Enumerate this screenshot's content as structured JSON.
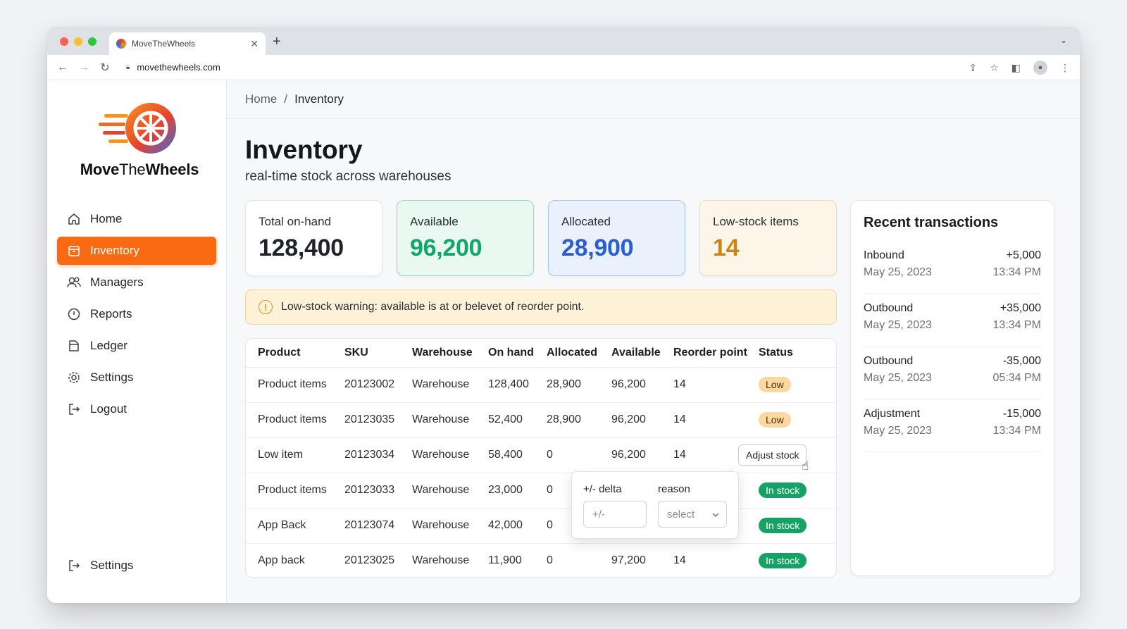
{
  "browser": {
    "tab_title": "MoveTheWheels",
    "url": "movethewheels.com",
    "colors": {
      "red": "#ff5f57",
      "yellow": "#febc2e",
      "green": "#28c840"
    }
  },
  "brand": {
    "name_bold_1": "Move",
    "name_thin": "The",
    "name_bold_2": "Wheels"
  },
  "nav": {
    "items": [
      {
        "label": "Home",
        "icon": "home-icon"
      },
      {
        "label": "Inventory",
        "icon": "box-icon",
        "active": true
      },
      {
        "label": "Managers",
        "icon": "users-icon"
      },
      {
        "label": "Reports",
        "icon": "clock-icon"
      },
      {
        "label": "Ledger",
        "icon": "folder-icon"
      },
      {
        "label": "Settings",
        "icon": "gear-icon"
      },
      {
        "label": "Logout",
        "icon": "logout-icon"
      }
    ],
    "bottom_label": "Settings"
  },
  "breadcrumb": {
    "home": "Home",
    "sep": "/",
    "current": "Inventory"
  },
  "page": {
    "title": "Inventory",
    "subtitle": "real-time stock across warehouses"
  },
  "kpis": [
    {
      "label": "Total on-hand",
      "value": "128,400"
    },
    {
      "label": "Available",
      "value": "96,200"
    },
    {
      "label": "Allocated",
      "value": "28,900"
    },
    {
      "label": "Low-stock items",
      "value": "14"
    }
  ],
  "warning": {
    "text": "Low-stock warning: available is at or belevet of reorder point."
  },
  "table": {
    "headers": [
      "Product",
      "SKU",
      "Warehouse",
      "On hand",
      "Allocated",
      "Available",
      "Reorder point",
      "Status"
    ],
    "rows": [
      {
        "product": "Product items",
        "sku": "20123002",
        "warehouse": "Warehouse",
        "on_hand": "128,400",
        "allocated": "28,900",
        "available": "96,200",
        "reorder": "14",
        "status": "Low"
      },
      {
        "product": "Product items",
        "sku": "20123035",
        "warehouse": "Warehouse",
        "on_hand": "52,400",
        "allocated": "28,900",
        "available": "96,200",
        "reorder": "14",
        "status": "Low"
      },
      {
        "product": "Low item",
        "sku": "20123034",
        "warehouse": "Warehouse",
        "on_hand": "58,400",
        "allocated": "0",
        "available": "96,200",
        "reorder": "14",
        "status": "Adjust stock"
      },
      {
        "product": "Product items",
        "sku": "20123033",
        "warehouse": "Warehouse",
        "on_hand": "23,000",
        "allocated": "0",
        "available": "",
        "reorder": "",
        "status": "In stock"
      },
      {
        "product": "App Back",
        "sku": "20123074",
        "warehouse": "Warehouse",
        "on_hand": "42,000",
        "allocated": "0",
        "available": "",
        "reorder": "",
        "status": "In stock"
      },
      {
        "product": "App back",
        "sku": "20123025",
        "warehouse": "Warehouse",
        "on_hand": "11,900",
        "allocated": "0",
        "available": "97,200",
        "reorder": "14",
        "status": "In stock"
      }
    ]
  },
  "popover": {
    "delta_label": "+/- delta",
    "reason_label": "reason",
    "delta_placeholder": "+/-",
    "reason_value": "select"
  },
  "transactions": {
    "title": "Recent transactions",
    "items": [
      {
        "type": "Inbound",
        "amount": "+5,000",
        "date": "May 25, 2023",
        "time": "13:34 PM"
      },
      {
        "type": "Outbound",
        "amount": "+35,000",
        "date": "May 25, 2023",
        "time": "13:34 PM"
      },
      {
        "type": "Outbound",
        "amount": "-35,000",
        "date": "May 25, 2023",
        "time": "05:34 PM"
      },
      {
        "type": "Adjustment",
        "amount": "-15,000",
        "date": "May 25, 2023",
        "time": "13:34 PM"
      }
    ]
  }
}
